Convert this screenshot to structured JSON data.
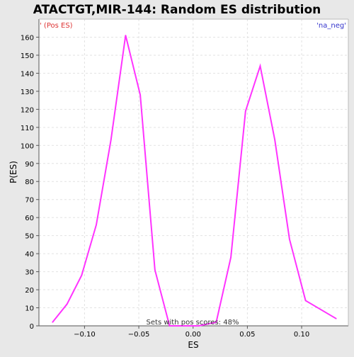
{
  "chart_data": {
    "type": "line",
    "title": "ATACTGT,MIR-144: Random ES distribution",
    "xlabel": "ES",
    "ylabel": "P(ES)",
    "xlim": [
      -0.142,
      0.143
    ],
    "ylim": [
      0,
      170
    ],
    "x_ticks": [
      -0.1,
      -0.05,
      0.0,
      0.05,
      0.1
    ],
    "x_tick_labels": [
      "−0.10",
      "−0.05",
      "0.00",
      "0.05",
      "0.10"
    ],
    "y_ticks": [
      0,
      10,
      20,
      30,
      40,
      50,
      60,
      70,
      80,
      90,
      100,
      110,
      120,
      130,
      140,
      150,
      160
    ],
    "grid": true,
    "legend": {
      "left": "' (Pos ES)",
      "right": "'na_neg'"
    },
    "footer": "Sets with pos scores: 48%",
    "colors": {
      "line": "#ff33ff",
      "pos_label": "#dd3333",
      "neg_label": "#3333cc",
      "grid": "#e2e2e2",
      "plot_bg": "#ffffff",
      "page_bg": "#e8e8e8"
    },
    "series": [
      {
        "x": [
          -0.1295,
          -0.1162,
          -0.1027,
          -0.0892,
          -0.0757,
          -0.0622,
          -0.0487,
          -0.0352,
          -0.0217,
          -0.0082,
          0.0053,
          0.0213,
          0.0348,
          0.0483,
          0.0618,
          0.0753,
          0.0888,
          0.1036,
          0.1318
        ],
        "y": [
          2,
          12,
          28,
          56,
          103,
          161,
          128,
          31,
          0,
          0,
          0,
          2,
          38,
          119,
          144,
          103,
          48,
          14,
          4
        ]
      }
    ]
  }
}
